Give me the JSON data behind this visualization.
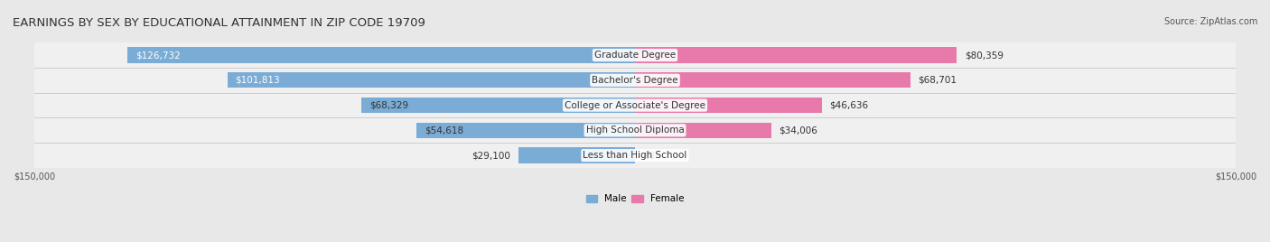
{
  "title": "EARNINGS BY SEX BY EDUCATIONAL ATTAINMENT IN ZIP CODE 19709",
  "source": "Source: ZipAtlas.com",
  "categories": [
    "Less than High School",
    "High School Diploma",
    "College or Associate's Degree",
    "Bachelor's Degree",
    "Graduate Degree"
  ],
  "male_values": [
    29100,
    54618,
    68329,
    101813,
    126732
  ],
  "female_values": [
    0,
    34006,
    46636,
    68701,
    80359
  ],
  "male_color": "#7aacd6",
  "female_color": "#e87aab",
  "bar_height": 0.62,
  "max_val": 150000,
  "bg_color": "#e8e8e8",
  "bar_bg_color": "#f0f0f0",
  "title_fontsize": 9.5,
  "label_fontsize": 7.5,
  "tick_fontsize": 7,
  "source_fontsize": 7
}
